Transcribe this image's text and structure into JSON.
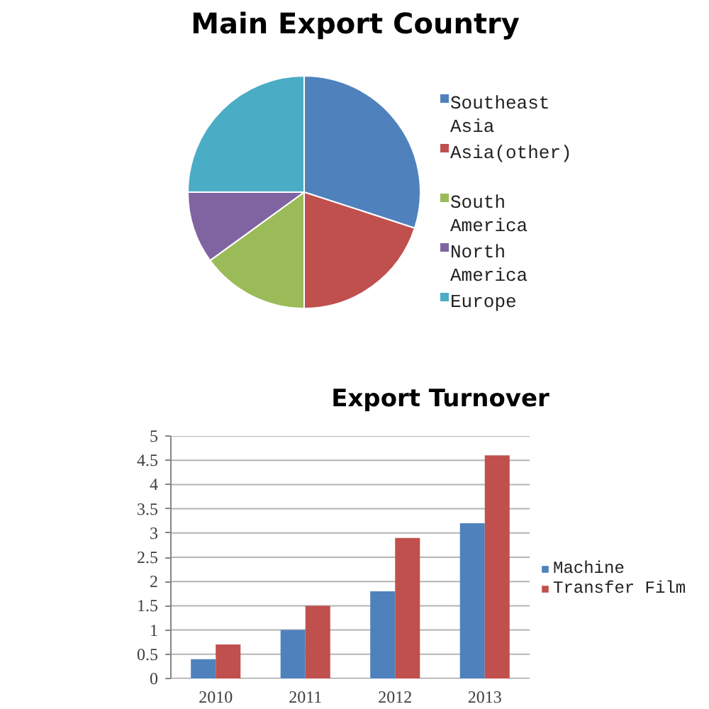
{
  "chart_data": [
    {
      "type": "pie",
      "title": "Main Export Country",
      "categories": [
        "Southeast Asia",
        "Asia(other)",
        "South America",
        "North America",
        "Europe"
      ],
      "values": [
        30,
        20,
        15,
        10,
        25
      ],
      "colors": [
        "#4f81bd",
        "#c0504d",
        "#9bbb59",
        "#8064a2",
        "#4bacc6"
      ],
      "legend": "right"
    },
    {
      "type": "bar",
      "title": "Export Turnover",
      "categories": [
        "2010",
        "2011",
        "2012",
        "2013"
      ],
      "series": [
        {
          "name": "Machine",
          "color": "#4f81bd",
          "values": [
            0.4,
            1,
            1.8,
            3.2
          ]
        },
        {
          "name": "Transfer Film",
          "color": "#c0504d",
          "values": [
            0.7,
            1.5,
            2.9,
            4.6
          ]
        }
      ],
      "ylim": [
        0,
        5
      ],
      "yticks": [
        0,
        0.5,
        1,
        1.5,
        2,
        2.5,
        3,
        3.5,
        4,
        4.5,
        5
      ],
      "grid": "y",
      "legend": "right"
    }
  ]
}
